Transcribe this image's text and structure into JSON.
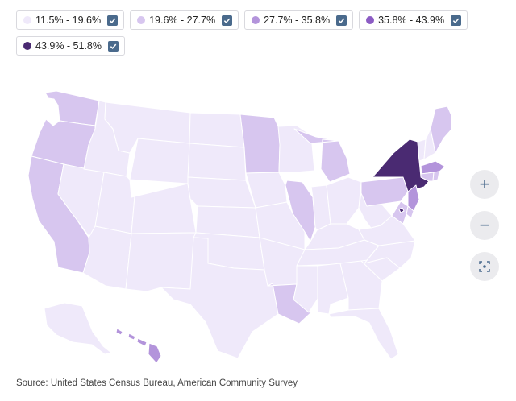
{
  "legend": {
    "items": [
      {
        "label": "11.5% - 19.6%",
        "color": "#efe9fa"
      },
      {
        "label": "19.6% - 27.7%",
        "color": "#d7c6ef"
      },
      {
        "label": "27.7% - 35.8%",
        "color": "#b394db"
      },
      {
        "label": "35.8% - 43.9%",
        "color": "#8c5cc4"
      },
      {
        "label": "43.9% - 51.8%",
        "color": "#4a2a72"
      }
    ],
    "check_color": "#4a6a8c"
  },
  "map": {
    "states": [
      {
        "name": "WA",
        "bin": 1
      },
      {
        "name": "OR",
        "bin": 1
      },
      {
        "name": "CA",
        "bin": 1
      },
      {
        "name": "NV",
        "bin": 0
      },
      {
        "name": "ID",
        "bin": 0
      },
      {
        "name": "MT",
        "bin": 0
      },
      {
        "name": "WY",
        "bin": 0
      },
      {
        "name": "UT",
        "bin": 0
      },
      {
        "name": "AZ",
        "bin": 0
      },
      {
        "name": "CO",
        "bin": 0
      },
      {
        "name": "NM",
        "bin": 0
      },
      {
        "name": "ND",
        "bin": 0
      },
      {
        "name": "SD",
        "bin": 0
      },
      {
        "name": "NE",
        "bin": 0
      },
      {
        "name": "KS",
        "bin": 0
      },
      {
        "name": "OK",
        "bin": 0
      },
      {
        "name": "TX",
        "bin": 0
      },
      {
        "name": "MN",
        "bin": 1
      },
      {
        "name": "IA",
        "bin": 0
      },
      {
        "name": "MO",
        "bin": 0
      },
      {
        "name": "AR",
        "bin": 0
      },
      {
        "name": "LA",
        "bin": 1
      },
      {
        "name": "WI",
        "bin": 0
      },
      {
        "name": "IL",
        "bin": 1
      },
      {
        "name": "MI",
        "bin": 1
      },
      {
        "name": "IN",
        "bin": 0
      },
      {
        "name": "OH",
        "bin": 0
      },
      {
        "name": "KY",
        "bin": 0
      },
      {
        "name": "TN",
        "bin": 0
      },
      {
        "name": "MS",
        "bin": 0
      },
      {
        "name": "AL",
        "bin": 0
      },
      {
        "name": "GA",
        "bin": 0
      },
      {
        "name": "FL",
        "bin": 0
      },
      {
        "name": "SC",
        "bin": 0
      },
      {
        "name": "NC",
        "bin": 0
      },
      {
        "name": "VA",
        "bin": 0
      },
      {
        "name": "WV",
        "bin": 0
      },
      {
        "name": "PA",
        "bin": 1
      },
      {
        "name": "NY",
        "bin": 4
      },
      {
        "name": "VT",
        "bin": 0
      },
      {
        "name": "NH",
        "bin": 0
      },
      {
        "name": "ME",
        "bin": 1
      },
      {
        "name": "MA",
        "bin": 2
      },
      {
        "name": "CT",
        "bin": 1
      },
      {
        "name": "RI",
        "bin": 1
      },
      {
        "name": "NJ",
        "bin": 2
      },
      {
        "name": "DE",
        "bin": 1
      },
      {
        "name": "MD",
        "bin": 1
      },
      {
        "name": "DC",
        "bin": 4
      },
      {
        "name": "AK",
        "bin": 0
      },
      {
        "name": "HI",
        "bin": 2
      }
    ]
  },
  "controls": {
    "zoom_in": "+",
    "zoom_out": "−"
  },
  "source": "Source: United States Census Bureau, American Community Survey"
}
